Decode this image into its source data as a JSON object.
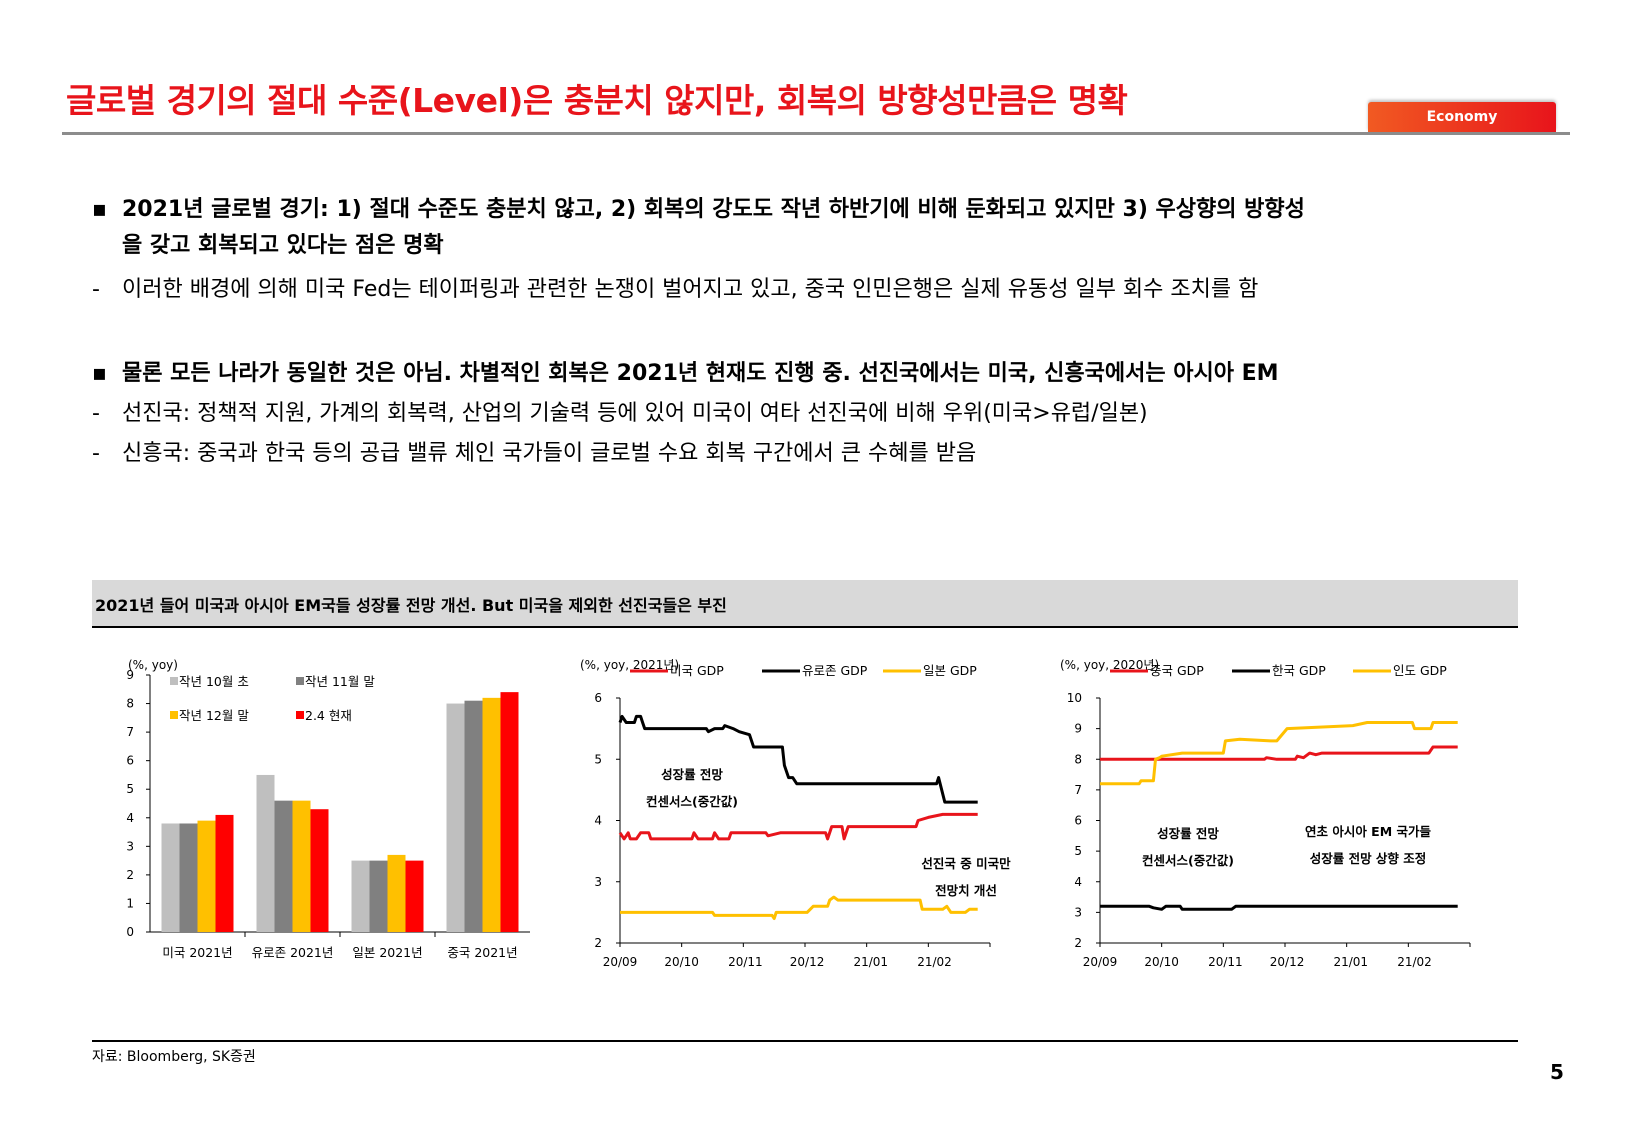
{
  "header": {
    "title": "글로벌 경기의 절대 수준(Level)은 충분치 않지만, 회복의 방향성만큼은 명확",
    "tag": "Economy"
  },
  "bullets": [
    {
      "marker": "▪",
      "bold": true,
      "text": "2021년 글로벌 경기: 1) 절대 수준도 충분치 않고, 2) 회복의 강도도 작년 하반기에 비해 둔화되고 있지만 3) 우상향의 방향성"
    },
    {
      "marker": "",
      "bold": true,
      "text": "을 갖고 회복되고 있다는 점은 명확"
    },
    {
      "marker": "-",
      "bold": false,
      "text": "이러한 배경에 의해 미국 Fed는 테이퍼링과 관련한 논쟁이 벌어지고 있고, 중국 인민은행은 실제 유동성 일부 회수 조치를 함"
    },
    {
      "marker": "▪",
      "bold": true,
      "text": "물론 모든 나라가 동일한 것은 아님. 차별적인 회복은 2021년 현재도 진행 중. 선진국에서는 미국, 신흥국에서는 아시아 EM"
    },
    {
      "marker": "-",
      "bold": false,
      "text": "선진국: 정책적 지원, 가계의 회복력, 산업의 기술력 등에 있어 미국이 여타 선진국에 비해 우위(미국>유럽/일본)"
    },
    {
      "marker": "-",
      "bold": false,
      "text": "신흥국: 중국과 한국 등의 공급 밸류 체인 국가들이 글로벌 수요 회복 구간에서 큰 수혜를 받음"
    }
  ],
  "section": {
    "title": "2021년 들어 미국과 아시아 EM국들 성장률 전망 개선. But 미국을 제외한 선진국들은 부진",
    "source": "자료: Bloomberg, SK증권"
  },
  "page_number": "5",
  "colors": {
    "red": "#e8141b",
    "gray_light": "#bfbfbf",
    "gray_dark": "#808080",
    "yellow": "#ffc000",
    "black": "#000000"
  },
  "chart_data": [
    {
      "type": "bar",
      "unit_label": "(%, yoy)",
      "categories": [
        "미국 2021년",
        "유로존 2021년",
        "일본 2021년",
        "중국 2021년"
      ],
      "ylim": [
        0,
        9
      ],
      "yticks": [
        "0",
        "1",
        "2",
        "3",
        "4",
        "5",
        "6",
        "7",
        "8",
        "9"
      ],
      "legend_position": "top-left",
      "series": [
        {
          "name": "작년 10월 초",
          "color": "#bfbfbf",
          "values": [
            3.8,
            5.5,
            2.5,
            8.0
          ]
        },
        {
          "name": "작년 11월 말",
          "color": "#808080",
          "values": [
            3.8,
            4.6,
            2.5,
            8.1
          ]
        },
        {
          "name": "작년 12월 말",
          "color": "#ffc000",
          "values": [
            3.9,
            4.6,
            2.7,
            8.2
          ]
        },
        {
          "name": "2.4 현재",
          "color": "#ff0000",
          "values": [
            4.1,
            4.3,
            2.5,
            8.4
          ]
        }
      ]
    },
    {
      "type": "line",
      "unit_label": "(%, yoy, 2021년)",
      "ylim": [
        2,
        6
      ],
      "yticks": [
        "2",
        "3",
        "4",
        "5",
        "6"
      ],
      "xlim": [
        "2020-09-01",
        "2021-02-28"
      ],
      "xticks": [
        {
          "date": "2020-09-01",
          "label": "20/09"
        },
        {
          "date": "2020-10-01",
          "label": "20/10"
        },
        {
          "date": "2020-11-01",
          "label": "20/11"
        },
        {
          "date": "2020-12-01",
          "label": "20/12"
        },
        {
          "date": "2021-01-01",
          "label": "21/01"
        },
        {
          "date": "2021-02-01",
          "label": "21/02"
        }
      ],
      "legend_position": "top",
      "annotations": [
        {
          "line1": "성장률 전망",
          "line2": "컨센서스(중간값)"
        },
        {
          "line1": "선진국 중 미국만",
          "line2": "전망치 개선"
        }
      ],
      "series": [
        {
          "name": "미국 GDP",
          "color": "#e8141b",
          "points": [
            [
              "2020-09-01",
              3.8
            ],
            [
              "2020-09-03",
              3.7
            ],
            [
              "2020-09-05",
              3.8
            ],
            [
              "2020-09-06",
              3.7
            ],
            [
              "2020-09-09",
              3.7
            ],
            [
              "2020-09-11",
              3.8
            ],
            [
              "2020-09-15",
              3.8
            ],
            [
              "2020-09-16",
              3.7
            ],
            [
              "2020-10-06",
              3.7
            ],
            [
              "2020-10-07",
              3.8
            ],
            [
              "2020-10-09",
              3.7
            ],
            [
              "2020-10-16",
              3.7
            ],
            [
              "2020-10-17",
              3.8
            ],
            [
              "2020-10-19",
              3.7
            ],
            [
              "2020-10-24",
              3.7
            ],
            [
              "2020-10-25",
              3.8
            ],
            [
              "2020-11-11",
              3.8
            ],
            [
              "2020-11-12",
              3.75
            ],
            [
              "2020-11-18",
              3.8
            ],
            [
              "2020-12-10",
              3.8
            ],
            [
              "2020-12-11",
              3.7
            ],
            [
              "2020-12-13",
              3.9
            ],
            [
              "2020-12-18",
              3.9
            ],
            [
              "2020-12-19",
              3.7
            ],
            [
              "2020-12-21",
              3.9
            ],
            [
              "2021-01-23",
              3.9
            ],
            [
              "2021-01-24",
              4.0
            ],
            [
              "2021-01-29",
              4.05
            ],
            [
              "2021-02-05",
              4.1
            ],
            [
              "2021-02-22",
              4.1
            ]
          ]
        },
        {
          "name": "유로존 GDP",
          "color": "#000000",
          "points": [
            [
              "2020-09-01",
              5.6
            ],
            [
              "2020-09-02",
              5.7
            ],
            [
              "2020-09-04",
              5.6
            ],
            [
              "2020-09-08",
              5.6
            ],
            [
              "2020-09-09",
              5.7
            ],
            [
              "2020-09-11",
              5.7
            ],
            [
              "2020-09-12",
              5.6
            ],
            [
              "2020-09-13",
              5.5
            ],
            [
              "2020-10-13",
              5.5
            ],
            [
              "2020-10-14",
              5.45
            ],
            [
              "2020-10-17",
              5.5
            ],
            [
              "2020-10-21",
              5.5
            ],
            [
              "2020-10-22",
              5.55
            ],
            [
              "2020-10-26",
              5.5
            ],
            [
              "2020-10-29",
              5.45
            ],
            [
              "2020-11-03",
              5.4
            ],
            [
              "2020-11-05",
              5.2
            ],
            [
              "2020-11-19",
              5.2
            ],
            [
              "2020-11-20",
              4.9
            ],
            [
              "2020-11-22",
              4.7
            ],
            [
              "2020-11-24",
              4.7
            ],
            [
              "2020-11-26",
              4.6
            ],
            [
              "2021-02-02",
              4.6
            ],
            [
              "2021-02-03",
              4.7
            ],
            [
              "2021-02-06",
              4.3
            ],
            [
              "2021-02-22",
              4.3
            ]
          ]
        },
        {
          "name": "일본 GDP",
          "color": "#ffc000",
          "points": [
            [
              "2020-09-01",
              2.5
            ],
            [
              "2020-10-16",
              2.5
            ],
            [
              "2020-10-17",
              2.45
            ],
            [
              "2020-11-14",
              2.45
            ],
            [
              "2020-11-15",
              2.4
            ],
            [
              "2020-11-16",
              2.5
            ],
            [
              "2020-12-01",
              2.5
            ],
            [
              "2020-12-04",
              2.6
            ],
            [
              "2020-12-11",
              2.6
            ],
            [
              "2020-12-12",
              2.7
            ],
            [
              "2020-12-14",
              2.75
            ],
            [
              "2020-12-16",
              2.7
            ],
            [
              "2021-01-25",
              2.7
            ],
            [
              "2021-01-26",
              2.55
            ],
            [
              "2021-02-05",
              2.55
            ],
            [
              "2021-02-07",
              2.6
            ],
            [
              "2021-02-09",
              2.5
            ],
            [
              "2021-02-16",
              2.5
            ],
            [
              "2021-02-18",
              2.55
            ],
            [
              "2021-02-22",
              2.55
            ]
          ]
        }
      ]
    },
    {
      "type": "line",
      "unit_label": "(%, yoy, 2020년)",
      "ylim": [
        2,
        10
      ],
      "yticks": [
        "2",
        "3",
        "4",
        "5",
        "6",
        "7",
        "8",
        "9",
        "10"
      ],
      "xlim": [
        "2020-09-01",
        "2021-02-28"
      ],
      "xticks": [
        {
          "date": "2020-09-01",
          "label": "20/09"
        },
        {
          "date": "2020-10-01",
          "label": "20/10"
        },
        {
          "date": "2020-11-01",
          "label": "20/11"
        },
        {
          "date": "2020-12-01",
          "label": "20/12"
        },
        {
          "date": "2021-01-01",
          "label": "21/01"
        },
        {
          "date": "2021-02-01",
          "label": "21/02"
        }
      ],
      "legend_position": "top",
      "annotations": [
        {
          "line1": "성장률 전망",
          "line2": "컨센서스(중간값)"
        },
        {
          "line1": "연초 아시아 EM 국가들",
          "line2": "성장률 전망 상향 조정"
        }
      ],
      "series": [
        {
          "name": "중국 GDP",
          "color": "#e8141b",
          "points": [
            [
              "2020-09-01",
              8.0
            ],
            [
              "2020-11-20",
              8.0
            ],
            [
              "2020-11-21",
              8.05
            ],
            [
              "2020-11-26",
              8.0
            ],
            [
              "2020-12-05",
              8.0
            ],
            [
              "2020-12-06",
              8.1
            ],
            [
              "2020-12-09",
              8.05
            ],
            [
              "2020-12-12",
              8.2
            ],
            [
              "2020-12-15",
              8.15
            ],
            [
              "2020-12-18",
              8.2
            ],
            [
              "2021-02-08",
              8.2
            ],
            [
              "2021-02-10",
              8.4
            ],
            [
              "2021-02-22",
              8.4
            ]
          ]
        },
        {
          "name": "한국 GDP",
          "color": "#000000",
          "points": [
            [
              "2020-09-01",
              3.2
            ],
            [
              "2020-09-25",
              3.2
            ],
            [
              "2020-09-27",
              3.15
            ],
            [
              "2020-10-01",
              3.1
            ],
            [
              "2020-10-03",
              3.2
            ],
            [
              "2020-10-10",
              3.2
            ],
            [
              "2020-10-11",
              3.1
            ],
            [
              "2020-11-04",
              3.1
            ],
            [
              "2020-11-06",
              3.2
            ],
            [
              "2021-02-22",
              3.2
            ]
          ]
        },
        {
          "name": "인도 GDP",
          "color": "#ffc000",
          "points": [
            [
              "2020-09-01",
              7.2
            ],
            [
              "2020-09-20",
              7.2
            ],
            [
              "2020-09-21",
              7.3
            ],
            [
              "2020-09-27",
              7.3
            ],
            [
              "2020-09-28",
              8.0
            ],
            [
              "2020-09-30",
              8.05
            ],
            [
              "2020-10-01",
              8.1
            ],
            [
              "2020-10-11",
              8.2
            ],
            [
              "2020-10-31",
              8.2
            ],
            [
              "2020-11-01",
              8.6
            ],
            [
              "2020-11-08",
              8.65
            ],
            [
              "2020-11-23",
              8.6
            ],
            [
              "2020-11-26",
              8.6
            ],
            [
              "2020-12-01",
              9.0
            ],
            [
              "2021-01-02",
              9.1
            ],
            [
              "2021-01-09",
              9.2
            ],
            [
              "2021-01-31",
              9.2
            ],
            [
              "2021-02-01",
              9.0
            ],
            [
              "2021-02-09",
              9.0
            ],
            [
              "2021-02-10",
              9.2
            ],
            [
              "2021-02-22",
              9.2
            ]
          ]
        }
      ]
    }
  ]
}
